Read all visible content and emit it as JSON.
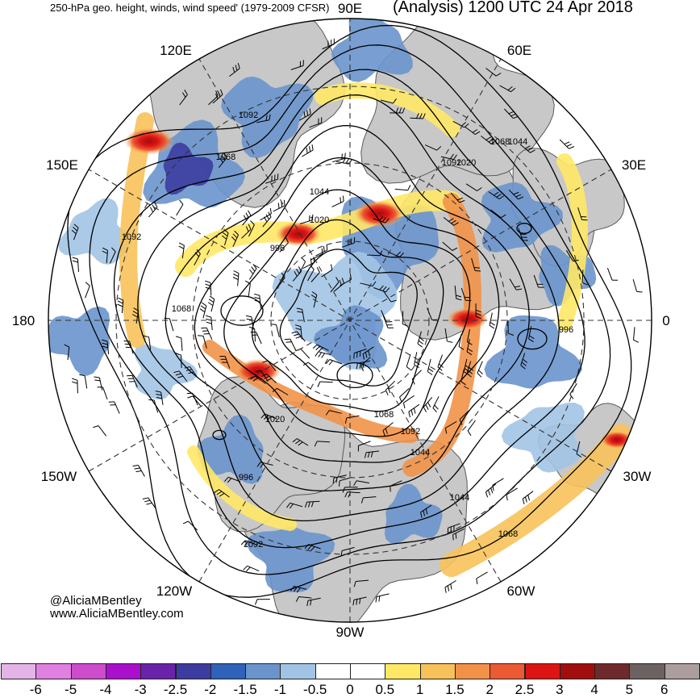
{
  "header": {
    "left_title": "250-hPa geo. height, winds, wind speed' (1979-2009 CFSR)",
    "right_title": "(Analysis) 1200 UTC 24 Apr 2018"
  },
  "credits": {
    "handle": "@AliciaMBentley",
    "site": "www.AliciaMBentley.com"
  },
  "map": {
    "projection": "north-polar-stereographic",
    "longitude_labels": [
      "90E",
      "60E",
      "30E",
      "0",
      "30W",
      "60W",
      "90W",
      "120W",
      "150W",
      "180",
      "150E",
      "120E"
    ],
    "contour_labels": [
      "1092",
      "1068",
      "1044",
      "1020",
      "996",
      "1092",
      "1068",
      "1044",
      "1020",
      "996",
      "1092",
      "1068",
      "1044",
      "1020",
      "996",
      "1044",
      "1068",
      "1092",
      "1068",
      "1092"
    ],
    "colors": {
      "land": "#c8c8c8",
      "ocean": "#ffffff",
      "contour": "#000000",
      "coast": "#5a5a5a",
      "grid": "#333333"
    }
  },
  "colorbar": {
    "ticks": [
      "-6",
      "-5",
      "-4",
      "-3",
      "-2.5",
      "-2",
      "-1.5",
      "-1",
      "-0.5",
      "0",
      "0.5",
      "1",
      "1.5",
      "2",
      "2.5",
      "3",
      "4",
      "5",
      "6"
    ],
    "colors": [
      "#e4b4e8",
      "#e080e0",
      "#cc4ccc",
      "#aa10cc",
      "#6a22aa",
      "#3c3ca0",
      "#2f62b8",
      "#6a94cc",
      "#a2c4e4",
      "#ffffff",
      "#ffffff",
      "#ffe866",
      "#f7c25a",
      "#f29248",
      "#ec5a34",
      "#dc1414",
      "#a00e0e",
      "#6e2a2a",
      "#6c6262",
      "#ac9e9e"
    ]
  }
}
